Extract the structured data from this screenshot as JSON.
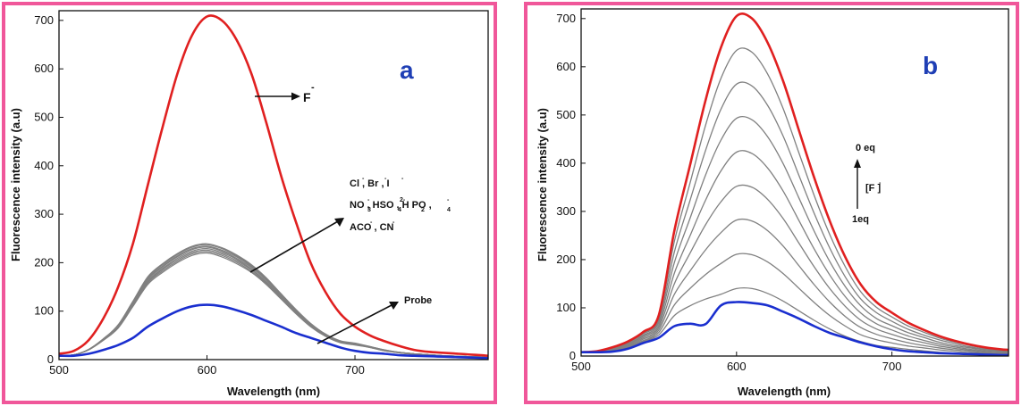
{
  "chart_data": [
    {
      "type": "line",
      "panel_label": "a",
      "xlabel": "Wavelength (nm)",
      "ylabel": "Fluorescence intensity (a.u)",
      "xlim": [
        500,
        790
      ],
      "ylim": [
        0,
        720
      ],
      "xticks": [
        500,
        600,
        700
      ],
      "yticks": [
        0,
        100,
        200,
        300,
        400,
        500,
        600,
        700
      ],
      "grid": false,
      "legend": "none",
      "colors": {
        "red": "#e02020",
        "gray": "#808080",
        "blue": "#1a2fcf"
      },
      "x": [
        500,
        510,
        520,
        530,
        540,
        550,
        560,
        570,
        580,
        590,
        600,
        610,
        620,
        630,
        640,
        650,
        660,
        670,
        680,
        690,
        700,
        710,
        720,
        730,
        740,
        750,
        760,
        770,
        780,
        790
      ],
      "series": [
        {
          "values": [
            12,
            18,
            40,
            85,
            150,
            240,
            360,
            480,
            590,
            670,
            708,
            700,
            660,
            590,
            490,
            380,
            285,
            200,
            140,
            95,
            68,
            50,
            38,
            28,
            20,
            16,
            14,
            12,
            10,
            8
          ]
        },
        {
          "values": [
            8,
            10,
            20,
            40,
            65,
            110,
            155,
            180,
            200,
            215,
            220,
            212,
            198,
            180,
            155,
            125,
            95,
            68,
            48,
            35,
            30,
            25,
            18,
            14,
            11,
            10,
            8,
            7,
            6,
            5
          ]
        },
        {
          "values": [
            8,
            10,
            20,
            40,
            66,
            112,
            158,
            183,
            203,
            218,
            223,
            215,
            201,
            182,
            157,
            127,
            96,
            69,
            49,
            36,
            31,
            25,
            18,
            14,
            11,
            10,
            8,
            7,
            6,
            5
          ]
        },
        {
          "values": [
            8,
            10,
            20,
            41,
            67,
            114,
            160,
            186,
            206,
            221,
            226,
            218,
            204,
            185,
            159,
            129,
            98,
            70,
            50,
            36,
            31,
            26,
            19,
            14,
            11,
            10,
            8,
            7,
            6,
            5
          ]
        },
        {
          "values": [
            8,
            10,
            20,
            41,
            68,
            115,
            162,
            188,
            209,
            224,
            229,
            221,
            207,
            187,
            161,
            130,
            99,
            71,
            50,
            37,
            32,
            26,
            19,
            15,
            12,
            10,
            8,
            7,
            6,
            5
          ]
        },
        {
          "values": [
            8,
            10,
            21,
            42,
            69,
            117,
            165,
            191,
            212,
            227,
            232,
            224,
            209,
            190,
            164,
            132,
            100,
            72,
            51,
            37,
            32,
            26,
            19,
            15,
            12,
            10,
            8,
            7,
            6,
            5
          ]
        },
        {
          "values": [
            8,
            10,
            21,
            42,
            70,
            118,
            167,
            193,
            214,
            229,
            234,
            226,
            212,
            192,
            165,
            133,
            101,
            73,
            52,
            38,
            33,
            27,
            19,
            15,
            12,
            10,
            8,
            7,
            6,
            5
          ]
        },
        {
          "values": [
            8,
            10,
            21,
            43,
            71,
            120,
            169,
            196,
            217,
            232,
            237,
            229,
            214,
            194,
            167,
            135,
            103,
            74,
            52,
            38,
            33,
            27,
            20,
            15,
            12,
            10,
            8,
            7,
            6,
            5
          ]
        },
        {
          "values": [
            8,
            10,
            21,
            43,
            72,
            121,
            171,
            198,
            219,
            234,
            239,
            231,
            216,
            196,
            169,
            136,
            104,
            75,
            53,
            39,
            34,
            27,
            20,
            15,
            12,
            10,
            8,
            7,
            6,
            5
          ]
        },
        {
          "values": [
            8,
            8,
            12,
            20,
            30,
            45,
            68,
            85,
            100,
            110,
            113,
            110,
            102,
            92,
            80,
            68,
            55,
            45,
            35,
            25,
            18,
            14,
            12,
            9,
            8,
            7,
            6,
            5,
            4,
            3
          ]
        }
      ],
      "annotations": {
        "fluoride": "F",
        "fluoride_sup": "-",
        "anions_line1": "Cl , Br , I",
        "anions_line2": "NO , HSO , H PO ,",
        "anions_line3": "ACO , CN",
        "probe": "Probe"
      }
    },
    {
      "type": "line",
      "panel_label": "b",
      "xlabel": "Wavelength (nm)",
      "ylabel": "Fluorescence intensity (a.u)",
      "xlim": [
        500,
        775
      ],
      "ylim": [
        0,
        720
      ],
      "xticks": [
        500,
        600,
        700
      ],
      "yticks": [
        0,
        100,
        200,
        300,
        400,
        500,
        600,
        700
      ],
      "grid": false,
      "legend": "none",
      "x": [
        500,
        510,
        520,
        530,
        540,
        550,
        560,
        570,
        580,
        590,
        600,
        610,
        620,
        630,
        640,
        650,
        660,
        670,
        680,
        690,
        700,
        710,
        720,
        730,
        740,
        750,
        760,
        770,
        775
      ],
      "series": [
        {
          "values": [
            8,
            10,
            18,
            30,
            50,
            85,
            260,
            395,
            530,
            640,
            705,
            700,
            650,
            570,
            470,
            370,
            280,
            205,
            148,
            112,
            90,
            70,
            55,
            42,
            32,
            24,
            18,
            14,
            13
          ]
        },
        {
          "values": [
            8,
            10,
            17,
            29,
            48,
            80,
            238,
            358,
            478,
            576,
            634,
            630,
            585,
            513,
            423,
            333,
            252,
            185,
            133,
            101,
            81,
            63,
            50,
            38,
            29,
            22,
            16,
            13,
            12
          ]
        },
        {
          "values": [
            8,
            10,
            16,
            27,
            46,
            75,
            216,
            322,
            426,
            512,
            564,
            560,
            520,
            456,
            376,
            296,
            224,
            164,
            118,
            90,
            72,
            56,
            44,
            34,
            26,
            19,
            14,
            11,
            10
          ]
        },
        {
          "values": [
            8,
            9,
            15,
            25,
            43,
            70,
            194,
            285,
            375,
            448,
            493,
            490,
            455,
            399,
            329,
            259,
            196,
            144,
            104,
            78,
            63,
            49,
            39,
            29,
            22,
            17,
            13,
            10,
            9
          ]
        },
        {
          "values": [
            8,
            9,
            14,
            24,
            41,
            64,
            172,
            249,
            323,
            384,
            423,
            420,
            390,
            342,
            282,
            222,
            168,
            123,
            89,
            67,
            54,
            42,
            33,
            25,
            19,
            14,
            11,
            9,
            8
          ]
        },
        {
          "values": [
            8,
            9,
            13,
            22,
            38,
            59,
            150,
            213,
            272,
            320,
            352,
            350,
            325,
            285,
            235,
            185,
            140,
            103,
            74,
            56,
            45,
            35,
            28,
            21,
            16,
            12,
            9,
            7,
            7
          ]
        },
        {
          "values": [
            8,
            9,
            12,
            20,
            35,
            54,
            128,
            176,
            220,
            256,
            282,
            280,
            260,
            228,
            188,
            148,
            112,
            82,
            59,
            45,
            36,
            28,
            22,
            17,
            13,
            10,
            7,
            6,
            6
          ]
        },
        {
          "values": [
            8,
            8,
            11,
            18,
            32,
            49,
            106,
            140,
            169,
            192,
            211,
            210,
            195,
            171,
            141,
            111,
            84,
            62,
            44,
            34,
            27,
            21,
            17,
            13,
            10,
            7,
            6,
            5,
            4
          ]
        },
        {
          "values": [
            8,
            8,
            10,
            17,
            30,
            44,
            84,
            104,
            118,
            128,
            140,
            140,
            130,
            114,
            94,
            74,
            56,
            41,
            30,
            22,
            18,
            14,
            11,
            8,
            6,
            5,
            4,
            3,
            3
          ]
        },
        {
          "values": [
            8,
            8,
            9,
            15,
            27,
            38,
            62,
            67,
            66,
            105,
            112,
            110,
            105,
            92,
            78,
            62,
            48,
            38,
            28,
            20,
            14,
            10,
            8,
            6,
            5,
            4,
            3,
            2,
            2
          ]
        }
      ],
      "annotations": {
        "zero_eq": "0 eq",
        "f_label": "[F ]",
        "one_eq": "1eq"
      }
    }
  ]
}
